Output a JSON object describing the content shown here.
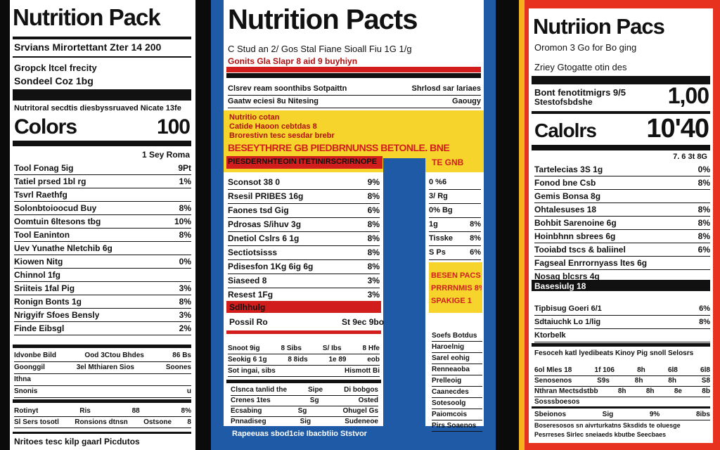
{
  "left": {
    "title": "Nutrition Pack",
    "serving": "Srvians Mirortettant Zter 14 200",
    "sub": [
      "Gropck ltcel frecity",
      "Sondeel Coz 1bg"
    ],
    "note": "Nutritoral secdtis diesbyssruaved Nicate 13fe",
    "calories_label": "Colors",
    "calories": "100",
    "daily": "1 Sey Roma",
    "rows": [
      [
        "Tool Fonag 5ig",
        "9Pt"
      ],
      [
        "Tatiel prsed 1bl rg",
        "1%"
      ],
      [
        "Tsvrl Raethfg"
      ],
      [
        "Solonbtoioocud Buy",
        "8%"
      ],
      [
        "Oomtuin 6ltesons tbg",
        "10%"
      ],
      [
        "Tool Eaninton",
        "8%"
      ],
      [
        "Uev Yunathe Nletchib 6g"
      ],
      [
        "Kiowen Nitg",
        "0%"
      ],
      [
        "Chinnol 1fg"
      ],
      [
        "Sriiteis 1fal Pig",
        "3%"
      ],
      [
        "Ronign Bonts 1g",
        "8%"
      ],
      [
        "Nrigyifr Sfoes Bensly",
        "3%"
      ],
      [
        "Finde Eibsgl",
        "2%"
      ]
    ],
    "table": [
      [
        "Idvonbe Bild",
        "Ood 3Ctou Bhdes",
        "86 Bs"
      ],
      [
        "Goonggil",
        "3el Mthiaren Sios",
        "Soones"
      ],
      [
        "Ithna"
      ],
      [
        "Snonis",
        "u"
      ]
    ],
    "table2": [
      [
        "Rotinyt",
        "Ris",
        "88",
        "8%"
      ],
      [
        "Sl Sers tosotl",
        "Ronsions dtnsn",
        "Ostsone",
        "8"
      ]
    ],
    "footer": "Nritoes tesc kilp gaarl Picdutos"
  },
  "middle": {
    "title": "Nutrition Pacts",
    "serving": "C Stud an 2/ Gos Stal   Fiane Sioall Fiu 1G 1/g",
    "sub": "Gonits Gla Slapr 8 aid 9 buyhiyn",
    "top_rows": [
      [
        "Clsrev ream soonthibs Sotpaittn",
        "Shrlosd sar lariaes"
      ],
      [
        "Gaatw eciesi 8u Nitesing",
        "Gaougy"
      ]
    ],
    "yellow": [
      "Nutritio cotan",
      "Catide Haoon cebtdas 8",
      "Brorestivn tesc sesdar brebr"
    ],
    "banner": [
      "BESEYTHRRE GB  PIEDBRNUNSS  BETONLE. BNE",
      "PIESDERNHTEOIN ITETINIRSCRIRNOPE"
    ],
    "banner_right": "TE GNB",
    "rows": [
      [
        "Sconsot 38 0",
        "9%"
      ],
      [
        "Rsesil PRIBES 16g",
        "8%"
      ],
      [
        "Faones tsd Gig",
        "6%"
      ],
      [
        "Pdrosas S/ihuv 3g",
        "8%"
      ],
      [
        "Dnetiol Cslrs 6 1g",
        "8%"
      ],
      [
        "Sectiotsisss",
        "8%"
      ],
      [
        "Pdisesfon 1Kg 6ig 6g",
        "8%"
      ],
      [
        "Siaseed 8",
        "3%"
      ],
      [
        "Resest 1Fg",
        "3%"
      ]
    ],
    "red_row": "Sdlhhulg",
    "possil": [
      "Possil Ro",
      "St 9ec 9bo"
    ],
    "table": [
      [
        "Snoot 9ig",
        "8 Sibs",
        "S/ Ibs",
        "8 Hfe"
      ],
      [
        "Seokig 6 1g",
        "8 8ids",
        "1e 89",
        "eob"
      ],
      [
        "Sot ingai, sibs",
        "Hismott Bi"
      ]
    ],
    "table2": [
      [
        "Clsnca tanlid the",
        "Sipe",
        "Di bobgos"
      ],
      [
        "Crenes 1tes",
        "Sg",
        "Osted"
      ],
      [
        "Ecsabing",
        "Sg",
        "Ohugel Gs"
      ],
      [
        "Pnnadiseg",
        "Sig",
        "Sudeneoe"
      ]
    ],
    "bottom": "Rapeeuas sbod1cie Ibacbtiio Ststvor",
    "side_rows": [
      [
        "0 %6"
      ],
      [
        "3/ Rg"
      ],
      [
        "0% Bg"
      ],
      [
        "1g",
        "8%"
      ],
      [
        "Tisske",
        "8%"
      ],
      [
        "S Ps",
        "6%"
      ]
    ],
    "side_yellow": [
      "BESEN PACS",
      "PRRRNMIS 8%",
      "SPAKIGE 1"
    ],
    "side_rows2": [
      [
        "Soefs Botdus"
      ],
      [
        "Haroelnig"
      ],
      [
        "Sarel eohig"
      ],
      [
        "Renneaoba"
      ],
      [
        "Prelleoig"
      ],
      [
        "Caanecdes"
      ],
      [
        "Sotesoolg"
      ],
      [
        "Paiomcois"
      ],
      [
        "Pirs Soaenos"
      ]
    ]
  },
  "right": {
    "title": "Nutriion Pacs",
    "serving": "Oromon 3 Go for Bo ging",
    "sub": "Zriey Gtogatte otin des",
    "amount": [
      "Bont fenotitmigrs 9/5",
      "1,00"
    ],
    "amount_sub": "Stestofsbdshe",
    "calories_label": "Calolrs",
    "calories": "10'40",
    "daily": "7. 6 3t 8G",
    "rows": [
      [
        "Tartelecias 3S 1g",
        "0%"
      ],
      [
        "Fonod bne Csb",
        "8%"
      ],
      [
        "Gemis Bonsa 8g"
      ],
      [
        "Ohtalesuses 18",
        "8%"
      ],
      [
        "Bohbit Sarenoine 6g",
        "8%"
      ],
      [
        "Hoinbhnn sbrees 6g",
        "8%"
      ],
      [
        "Tooiabd tscs & baliinel",
        "6%"
      ],
      [
        "Fagseal Enrrornyass ltes 6g"
      ],
      [
        "Nosag blcsrs 4g"
      ]
    ],
    "black_row": "Basesiulg 18",
    "rows2": [
      [
        "Tipbisug Goeri 6/1",
        "6%"
      ],
      [
        "Sdtaiuchk Lo 1/lig",
        "8%"
      ],
      [
        "Ktorbelk"
      ]
    ],
    "note": "Fesoceh katl lyedibeats Kinoy Pig snoll Selosrs",
    "table": [
      [
        "6ol Mles 18",
        "1f 106",
        "8h",
        "6l8",
        "6l8"
      ],
      [
        "Senosenos",
        "S9s",
        "8h",
        "8h",
        "S8"
      ],
      [
        "Nthran Mectsdstbb",
        "8h",
        "8h",
        "8e",
        "8b"
      ],
      [
        "Sosssboesos"
      ]
    ],
    "table2": [
      [
        "Sbeionos",
        "Sig",
        "9%",
        "8ibs"
      ]
    ],
    "footer": [
      "Boseresosos sn aivrturkatns Sksdids te oluesge",
      "Pesrreses Sirlec sneiaeds kbutbe Seecbaes"
    ]
  }
}
